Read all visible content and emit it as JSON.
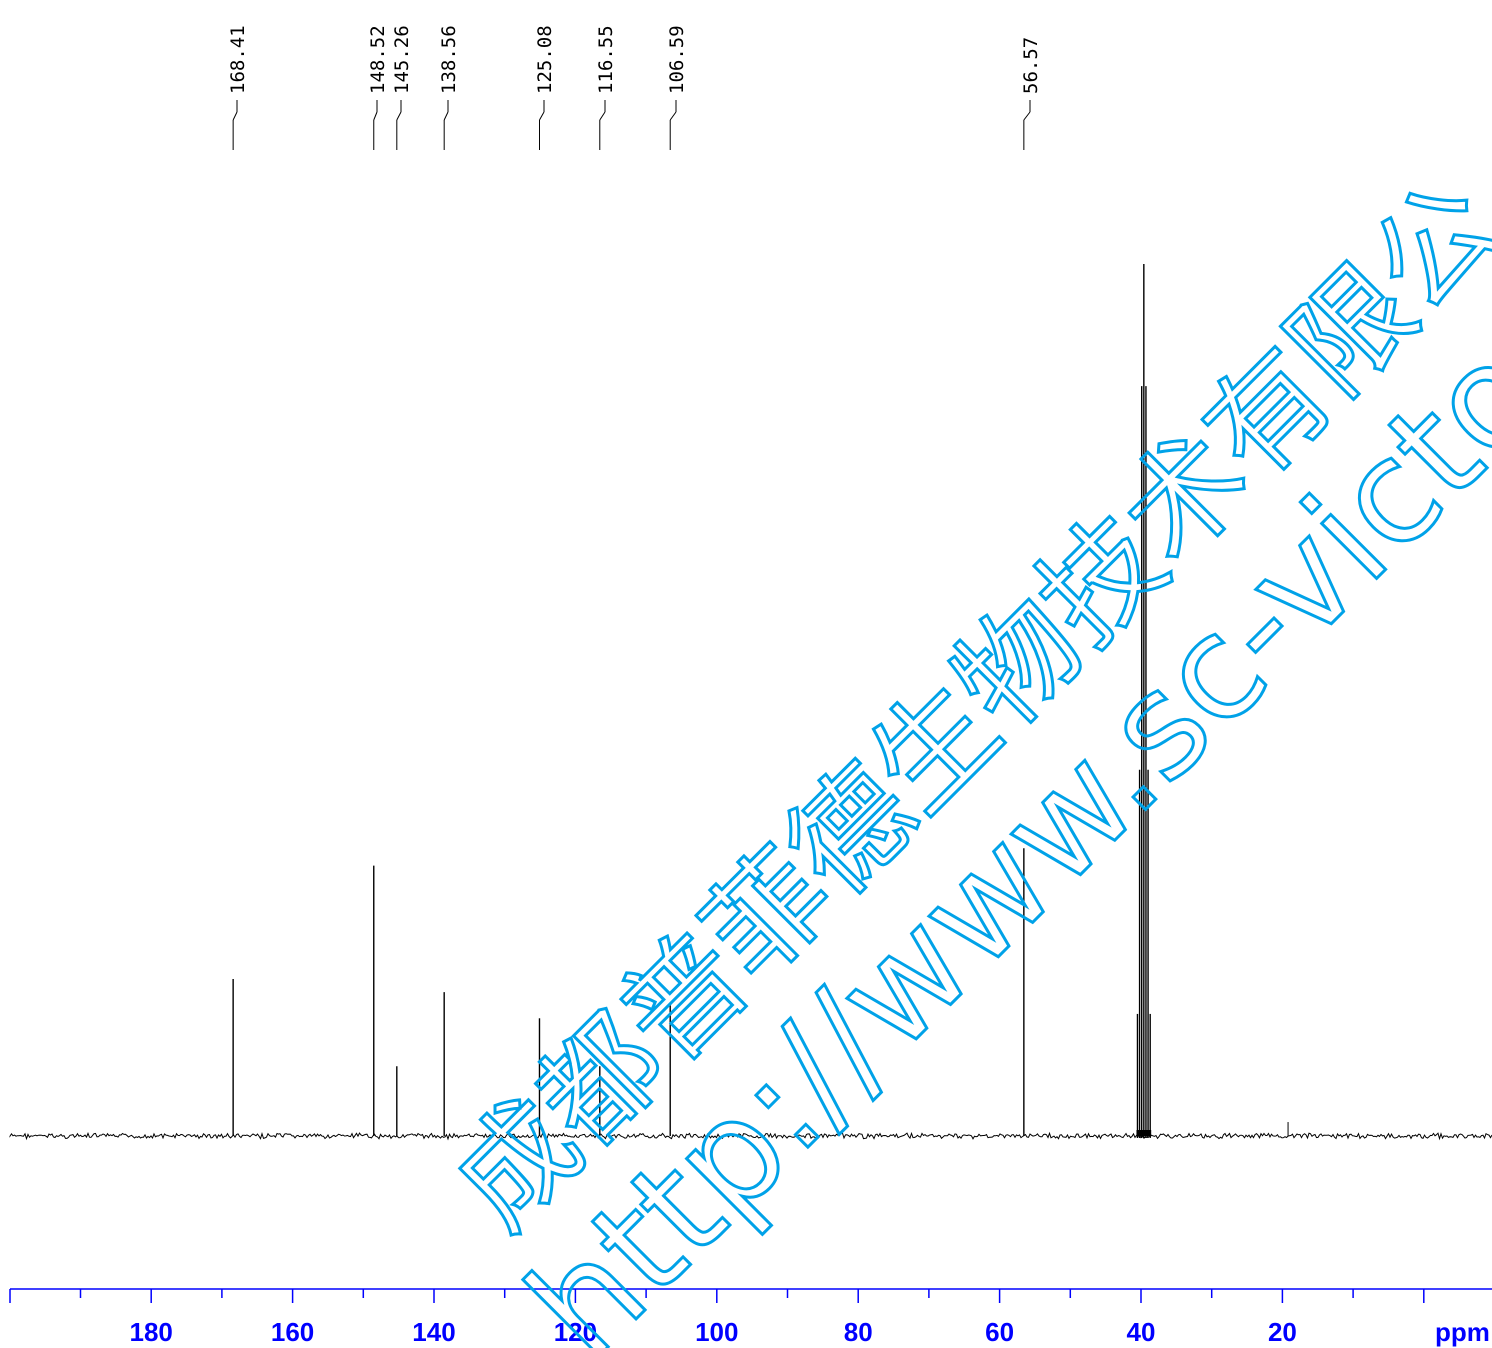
{
  "chart_data": {
    "type": "line",
    "title": "",
    "xlabel": "ppm",
    "ylabel": "",
    "xlim": [
      200,
      -4
    ],
    "x_reversed": true,
    "x_ticks": [
      180,
      160,
      140,
      120,
      100,
      80,
      60,
      40,
      20
    ],
    "grid": false,
    "legend": "none",
    "peaks": [
      {
        "ppm": 168.41,
        "label": "168.41",
        "height": 0.18
      },
      {
        "ppm": 148.52,
        "label": "148.52",
        "height": 0.31
      },
      {
        "ppm": 145.26,
        "label": "145.26",
        "height": 0.08
      },
      {
        "ppm": 138.56,
        "label": "138.56",
        "height": 0.165
      },
      {
        "ppm": 125.08,
        "label": "125.08",
        "height": 0.135
      },
      {
        "ppm": 116.55,
        "label": "116.55",
        "height": 0.08
      },
      {
        "ppm": 106.59,
        "label": "106.59",
        "height": 0.15
      },
      {
        "ppm": 56.57,
        "label": "56.57",
        "height": 0.33
      }
    ],
    "solvent_multiplet": [
      {
        "ppm": 40.5,
        "height": 0.14
      },
      {
        "ppm": 40.2,
        "height": 0.42
      },
      {
        "ppm": 39.9,
        "height": 0.86
      },
      {
        "ppm": 39.6,
        "height": 1.0
      },
      {
        "ppm": 39.3,
        "height": 0.86
      },
      {
        "ppm": 39.0,
        "height": 0.42
      },
      {
        "ppm": 38.7,
        "height": 0.14
      }
    ],
    "minor_peaks": [
      {
        "ppm": 19.2,
        "height": 0.016
      }
    ]
  },
  "colors": {
    "spectrum": "#000000",
    "axis": "#0000ff",
    "watermark": "#00a2e8"
  },
  "watermark": {
    "line1": "成都普菲德生物技术有限公",
    "line2": "http://www.sc-victory"
  }
}
